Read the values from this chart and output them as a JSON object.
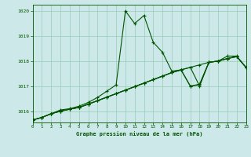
{
  "title": "Graphe pression niveau de la mer (hPa)",
  "bg_color": "#cce8e8",
  "grid_color": "#99ccbb",
  "line_color": "#005500",
  "xlim": [
    0,
    23
  ],
  "ylim": [
    1015.55,
    1020.25
  ],
  "yticks": [
    1016,
    1017,
    1018,
    1019,
    1020
  ],
  "xtick_labels": [
    "0",
    "1",
    "2",
    "3",
    "4",
    "5",
    "6",
    "7",
    "8",
    "9",
    "10",
    "11",
    "12",
    "13",
    "14",
    "15",
    "16",
    "17",
    "18",
    "19",
    "20",
    "21",
    "22",
    "23"
  ],
  "main_y": [
    1015.65,
    1015.75,
    1015.9,
    1016.05,
    1016.1,
    1016.2,
    1016.35,
    1016.55,
    1016.8,
    1017.05,
    1020.0,
    1019.5,
    1019.82,
    1018.75,
    1018.35,
    1017.6,
    1017.65,
    1017.0,
    1017.05,
    1017.95,
    1018.0,
    1018.2,
    1018.2,
    1017.75
  ],
  "line2_y": [
    1015.65,
    1015.75,
    1015.9,
    1016.0,
    1016.08,
    1016.15,
    1016.28,
    1016.42,
    1016.56,
    1016.7,
    1016.84,
    1016.98,
    1017.12,
    1017.26,
    1017.4,
    1017.54,
    1017.65,
    1017.75,
    1017.85,
    1017.95,
    1018.0,
    1018.1,
    1018.18,
    1017.75
  ],
  "line3_y": [
    1015.65,
    1015.75,
    1015.9,
    1016.0,
    1016.08,
    1016.15,
    1016.28,
    1016.42,
    1016.56,
    1016.7,
    1016.84,
    1016.98,
    1017.12,
    1017.26,
    1017.4,
    1017.54,
    1017.65,
    1017.0,
    1017.08,
    1017.95,
    1018.0,
    1018.1,
    1018.18,
    1017.75
  ],
  "line4_y": [
    1015.65,
    1015.75,
    1015.9,
    1016.0,
    1016.08,
    1016.15,
    1016.28,
    1016.42,
    1016.56,
    1016.7,
    1016.84,
    1016.98,
    1017.12,
    1017.26,
    1017.4,
    1017.54,
    1017.65,
    1017.75,
    1017.0,
    1017.95,
    1018.0,
    1018.1,
    1018.18,
    1017.75
  ]
}
